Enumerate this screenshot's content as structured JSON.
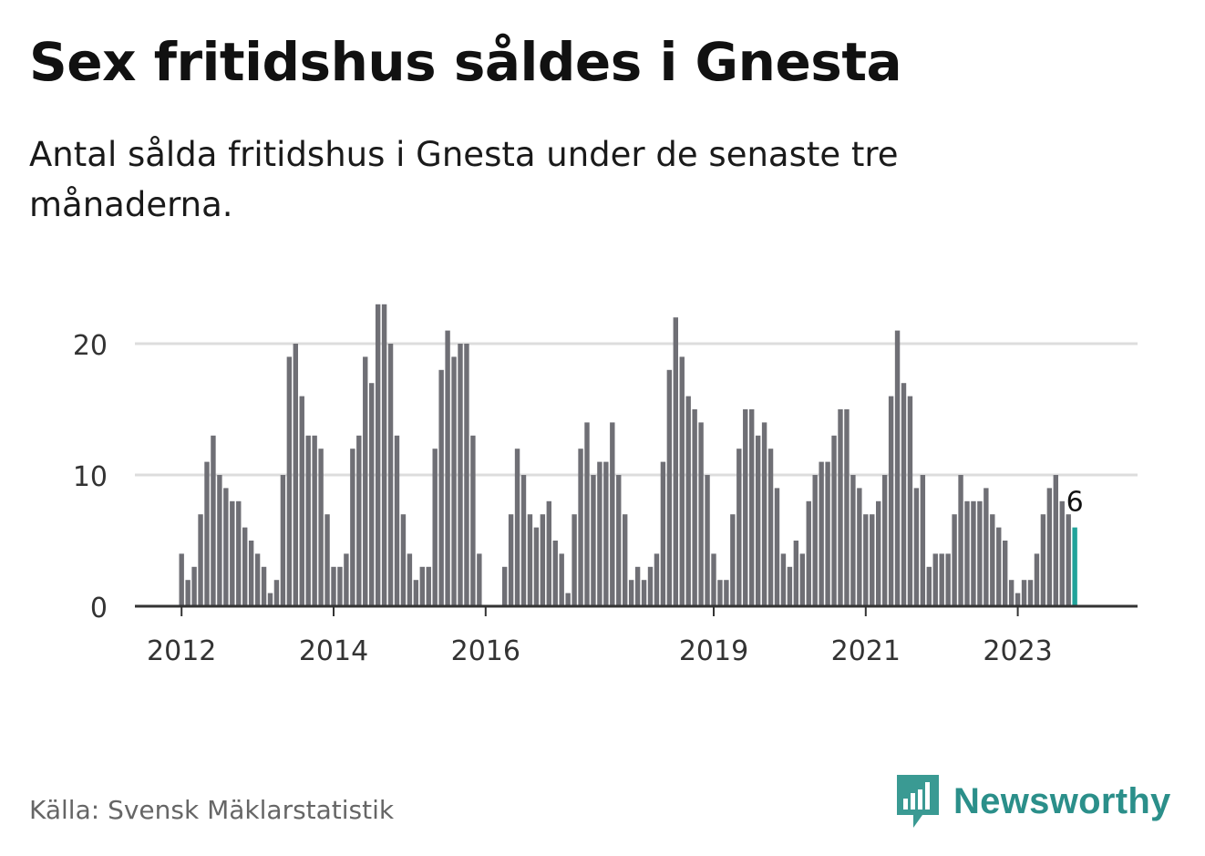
{
  "title": "Sex fritidshus såldes i Gnesta",
  "subtitle": "Antal sålda fritidshus i Gnesta under de senaste tre månaderna.",
  "source": "Källa: Svensk Mäklarstatistik",
  "brand": "Newsworthy",
  "colors": {
    "bar": "#6f6f75",
    "highlight": "#21a39a",
    "grid": "#dddddd",
    "axis": "#333333",
    "brand": "#2b8f8a"
  },
  "chart_data": {
    "type": "bar",
    "start": "2012-01",
    "frequency": "monthly",
    "ylim": [
      0,
      25
    ],
    "yticks": [
      0,
      10,
      20
    ],
    "xticks": [
      {
        "label": "2012",
        "index": 0
      },
      {
        "label": "2014",
        "index": 24
      },
      {
        "label": "2016",
        "index": 48
      },
      {
        "label": "2019",
        "index": 84
      },
      {
        "label": "2021",
        "index": 108
      },
      {
        "label": "2023",
        "index": 132
      }
    ],
    "values": [
      4,
      2,
      3,
      7,
      11,
      13,
      10,
      9,
      8,
      8,
      6,
      5,
      4,
      3,
      1,
      2,
      10,
      19,
      20,
      16,
      13,
      13,
      12,
      7,
      3,
      3,
      4,
      12,
      13,
      19,
      17,
      23,
      23,
      20,
      13,
      7,
      4,
      2,
      3,
      3,
      12,
      18,
      21,
      19,
      20,
      20,
      13,
      4,
      0,
      0,
      0,
      3,
      7,
      12,
      10,
      7,
      6,
      7,
      8,
      5,
      4,
      1,
      7,
      12,
      14,
      10,
      11,
      11,
      14,
      10,
      7,
      2,
      3,
      2,
      3,
      4,
      11,
      18,
      22,
      19,
      16,
      15,
      14,
      10,
      4,
      2,
      2,
      7,
      12,
      15,
      15,
      13,
      14,
      12,
      9,
      4,
      3,
      5,
      4,
      8,
      10,
      11,
      11,
      13,
      15,
      15,
      10,
      9,
      7,
      7,
      8,
      10,
      16,
      21,
      17,
      16,
      9,
      10,
      3,
      4,
      4,
      4,
      7,
      10,
      8,
      8,
      8,
      9,
      7,
      6,
      5,
      2,
      1,
      2,
      2,
      4,
      7,
      9,
      10,
      8,
      7,
      6
    ],
    "highlight_index": 141,
    "annotation": "6"
  }
}
